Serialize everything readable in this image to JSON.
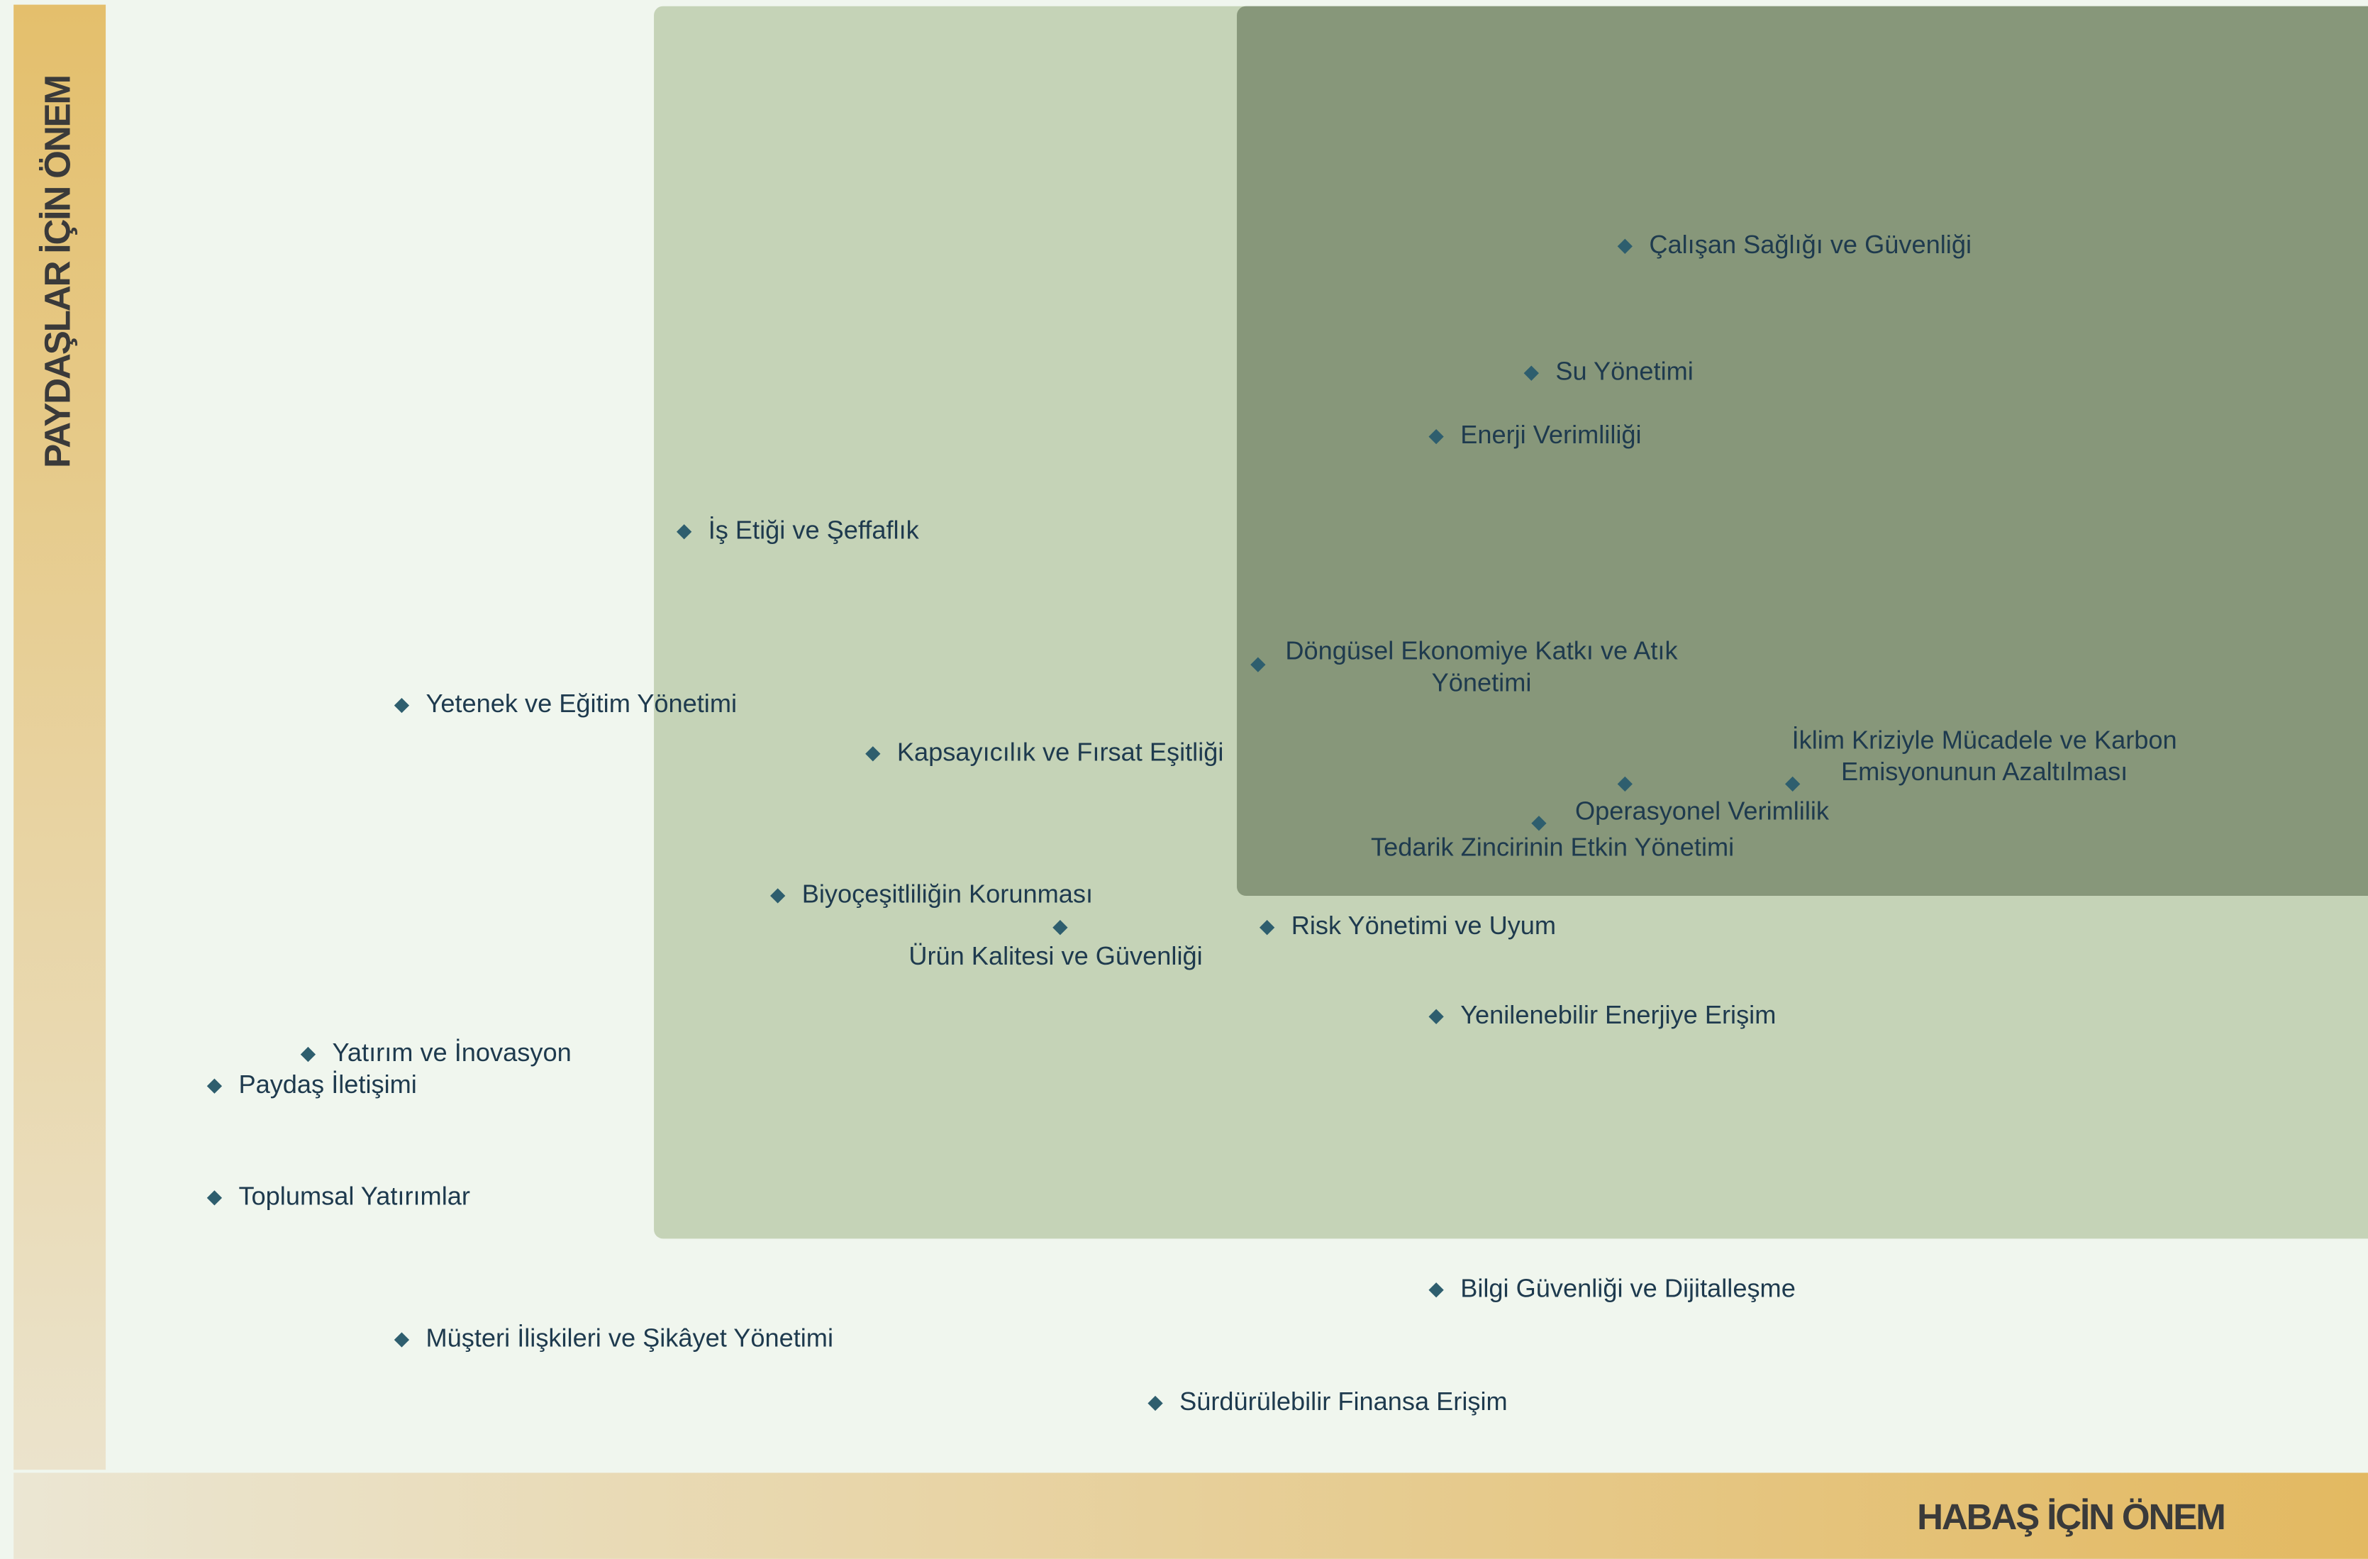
{
  "axes": {
    "y_label": "PAYDAŞLAR İÇİN ÖNEM",
    "x_label": "HABAŞ İÇİN ÖNEM"
  },
  "nodes": [
    {
      "label": [
        "Çalışan Sağlığı ve Güvenliği"
      ]
    },
    {
      "label": [
        "Su Yönetimi"
      ]
    },
    {
      "label": [
        "Enerji Verimliliği"
      ]
    },
    {
      "label": [
        "İş Etiği ve Şeffaflık"
      ]
    },
    {
      "label": [
        "Döngüsel Ekonomiye Katkı ve Atık",
        "Yönetimi"
      ]
    },
    {
      "label": [
        "Yetenek ve Eğitim Yönetimi"
      ]
    },
    {
      "label": [
        "Kapsayıcılık ve Fırsat Eşitliği"
      ]
    },
    {
      "label": [
        "İklim Kriziyle Mücadele ve Karbon",
        "Emisyonunun Azaltılması"
      ]
    },
    {
      "label": [
        "Operasyonel Verimlilik"
      ]
    },
    {
      "label": [
        "Tedarik Zincirinin Etkin Yönetimi"
      ]
    },
    {
      "label": [
        "Biyoçeşitliliğin Korunması"
      ]
    },
    {
      "label": [
        "Ürün Kalitesi ve Güvenliği"
      ]
    },
    {
      "label": [
        "Risk Yönetimi ve Uyum"
      ]
    },
    {
      "label": [
        "Yenilenebilir Enerjiye Erişim"
      ]
    },
    {
      "label": [
        "Yatırım ve İnovasyon"
      ]
    },
    {
      "label": [
        "Paydaş İletişimi"
      ]
    },
    {
      "label": [
        "Toplumsal Yatırımlar"
      ]
    },
    {
      "label": [
        "Bilgi Güvenliği ve Dijitalleşme"
      ]
    },
    {
      "label": [
        "Müşteri İlişkileri ve Şikâyet Yönetimi"
      ]
    },
    {
      "label": [
        "Sürdürülebilir Finansa Erişim"
      ]
    }
  ]
}
